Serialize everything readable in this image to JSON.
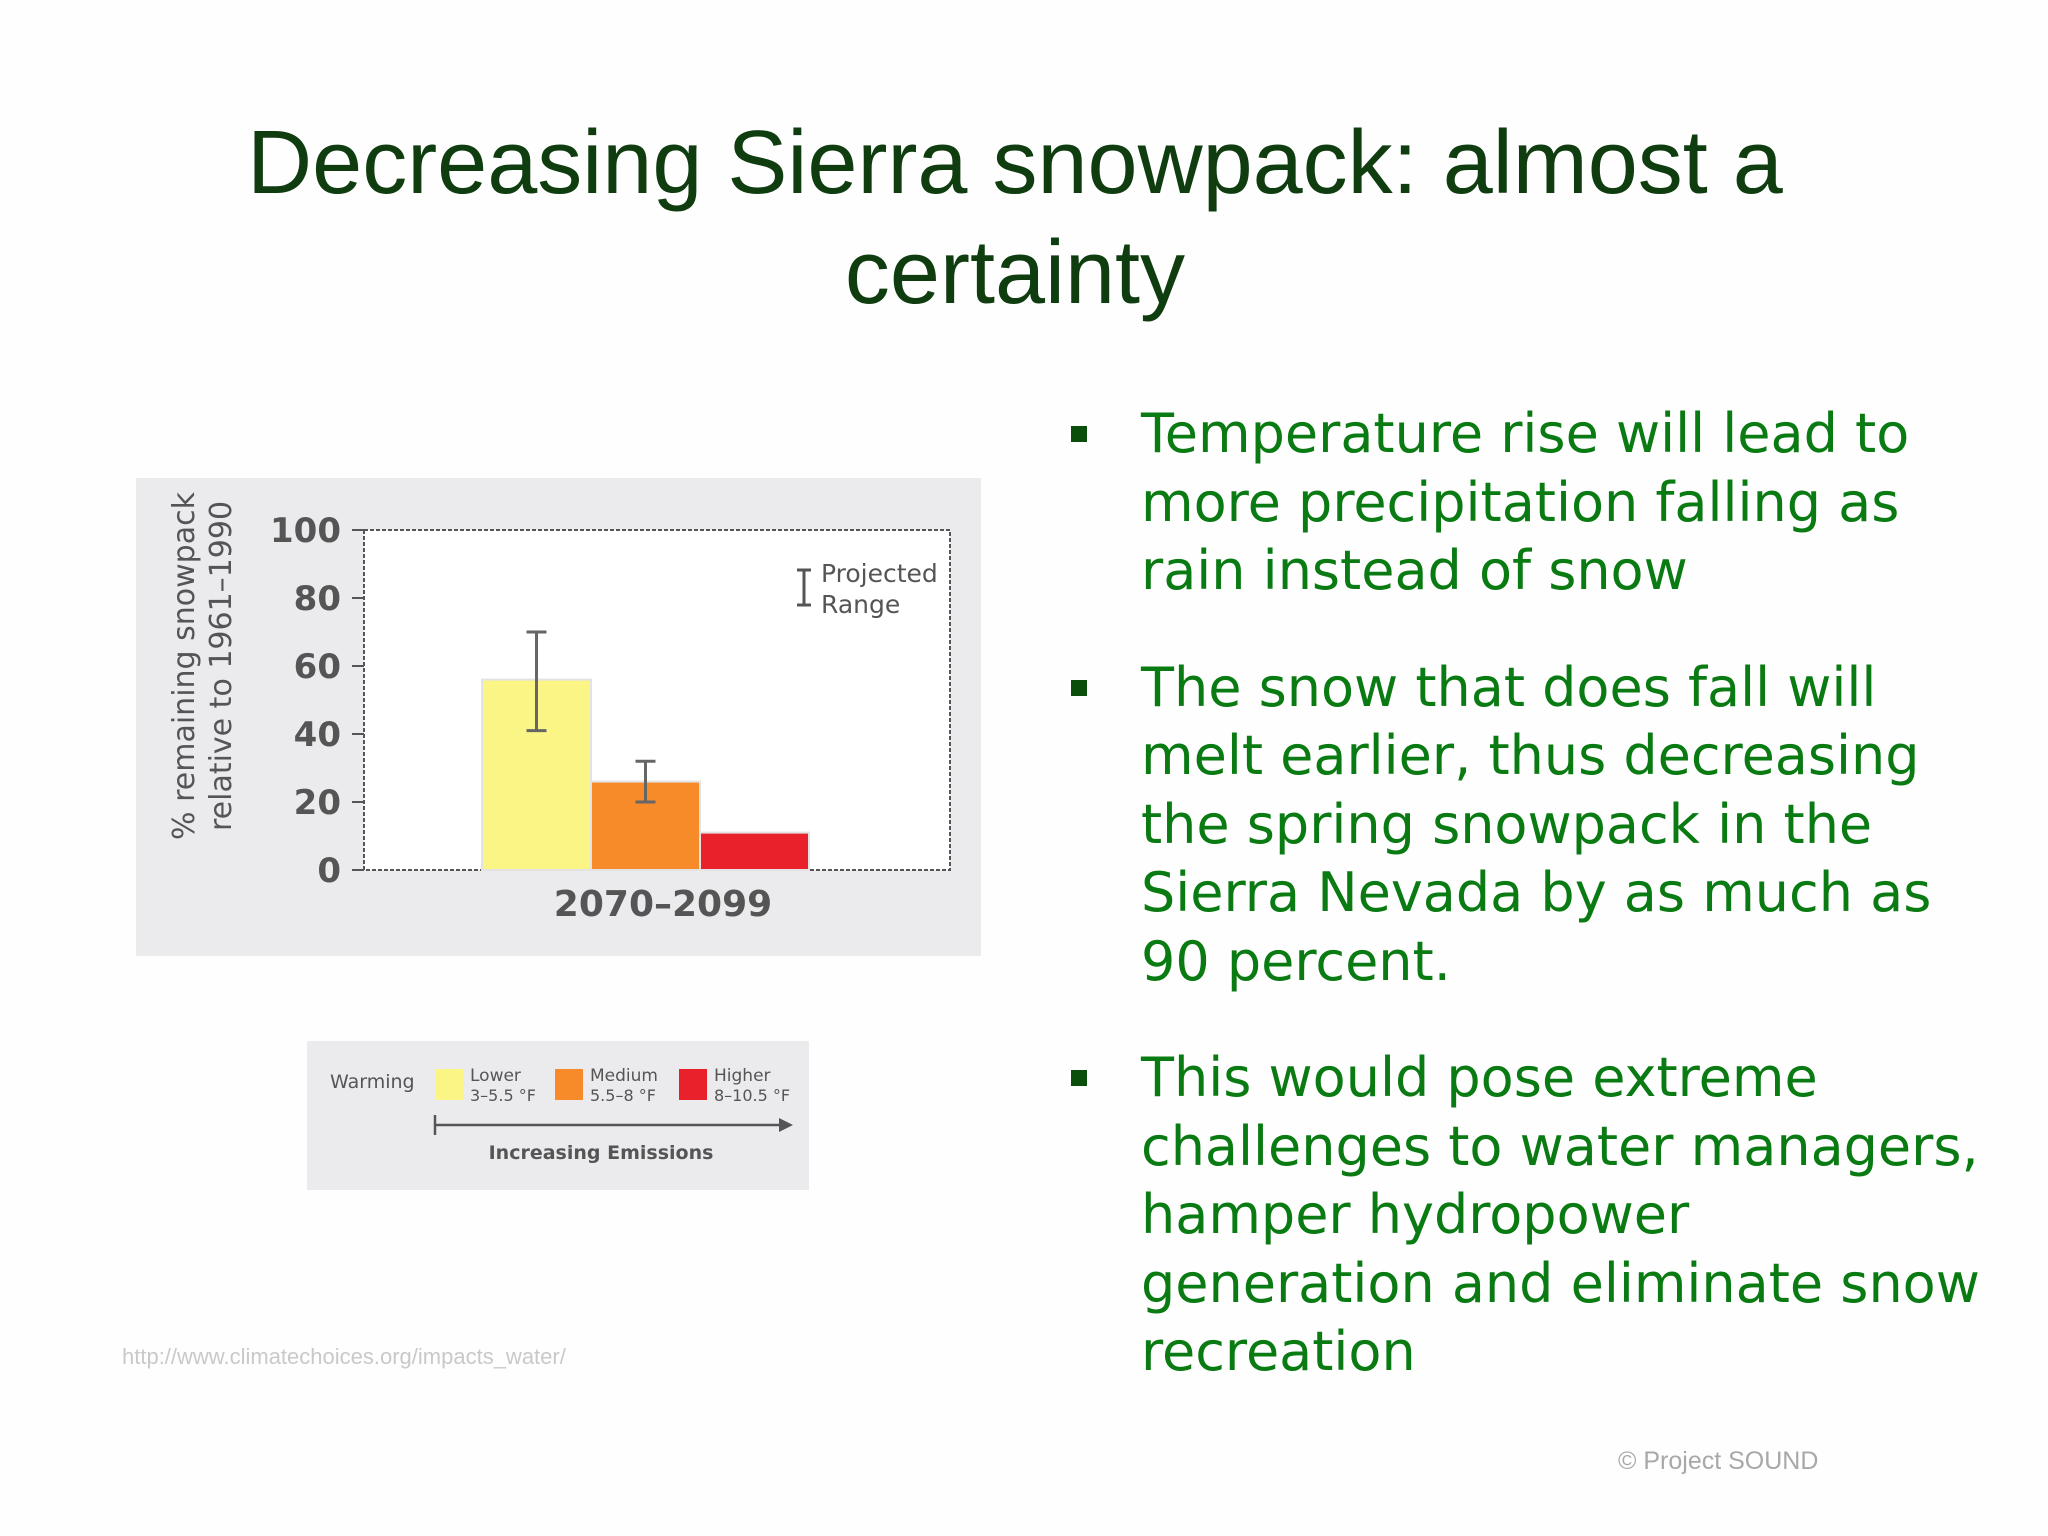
{
  "slide": {
    "title": "Decreasing Sierra snowpack: almost a certainty",
    "bullets": [
      "Temperature rise will lead to more precipitation falling as rain instead of snow",
      "The snow that does fall will melt earlier, thus decreasing the spring snowpack in the Sierra Nevada by as much as 90 percent.",
      "This would pose extreme challenges to water managers, hamper hydropower generation and eliminate snow recreation"
    ],
    "source_url": "http://www.climatechoices.org/impacts_water/",
    "copyright": "© Project  SOUND"
  },
  "colors": {
    "title": "#0f3d0f",
    "bullet_text": "#0a7a12",
    "panel_bg": "#ebebee",
    "lower": "#fbf585",
    "medium": "#f78b2a",
    "higher": "#e8212a"
  },
  "chart_data": {
    "type": "bar",
    "categories": [
      "2070–2099"
    ],
    "series": [
      {
        "name": "Lower",
        "values": [
          56
        ],
        "range": [
          41,
          70
        ]
      },
      {
        "name": "Medium",
        "values": [
          26
        ],
        "range": [
          20,
          32
        ]
      },
      {
        "name": "Higher",
        "values": [
          11
        ]
      }
    ],
    "ylabel": "% remaining snowpack relative to 1961–1990",
    "ylim": [
      0,
      100
    ],
    "yticks": [
      0,
      20,
      40,
      60,
      80,
      100
    ],
    "range_legend": [
      "Projected",
      "Range"
    ],
    "legend": {
      "warming_label": "Warming",
      "items": [
        {
          "name": "Lower",
          "range": "3–5.5 °F"
        },
        {
          "name": "Medium",
          "range": "5.5–8 °F"
        },
        {
          "name": "Higher",
          "range": "8–10.5 °F"
        }
      ],
      "arrow_label": "Increasing Emissions"
    }
  }
}
